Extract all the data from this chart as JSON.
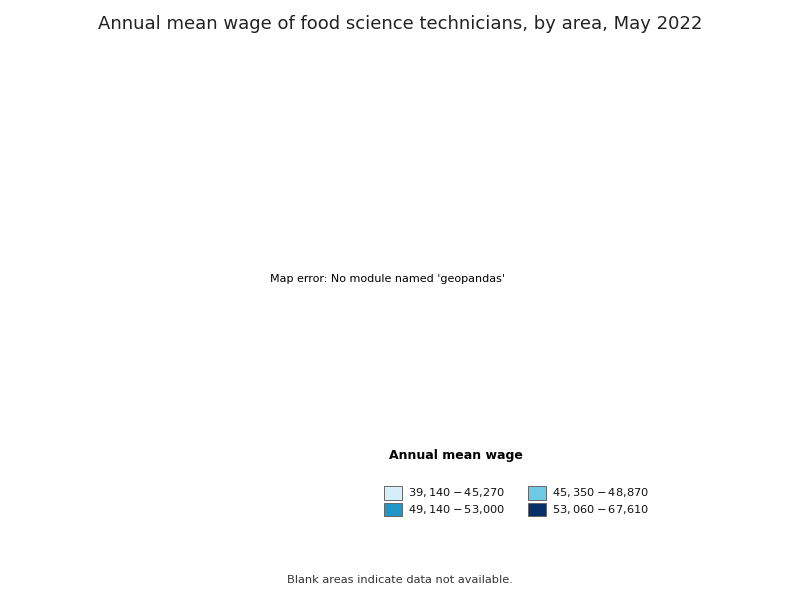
{
  "title": "Annual mean wage of food science technicians, by area, May 2022",
  "legend_title": "Annual mean wage",
  "legend_items": [
    {
      "label": "$39,140 - $45,270",
      "color": "#d6eef8"
    },
    {
      "label": "$45,350 - $48,870",
      "color": "#6ecae4"
    },
    {
      "label": "$49,140 - $53,000",
      "color": "#2196c9"
    },
    {
      "label": "$53,060 - $67,610",
      "color": "#08306b"
    }
  ],
  "blank_note": "Blank areas indicate data not available.",
  "background_color": "#ffffff",
  "title_fontsize": 13,
  "border_color": "#888888",
  "default_color": "#ffffff",
  "map_border_color": "#555555"
}
